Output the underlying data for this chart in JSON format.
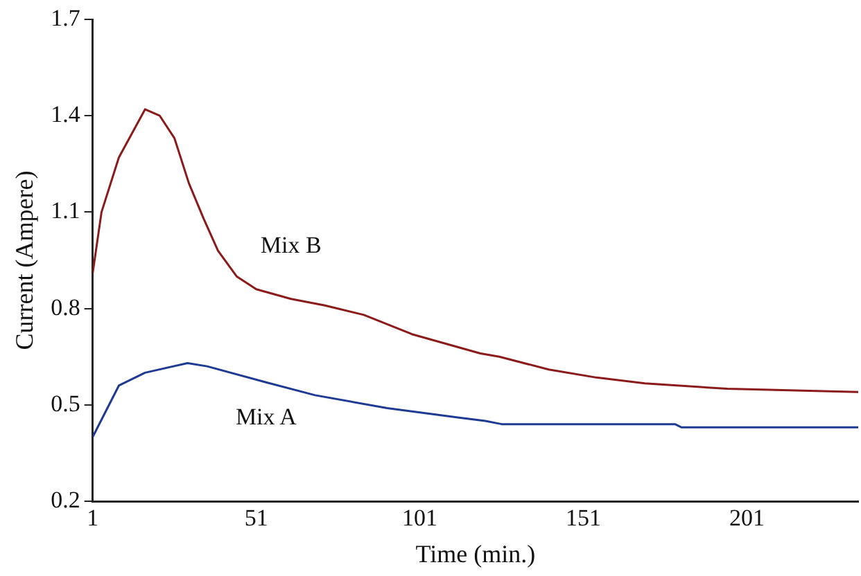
{
  "chart_data": {
    "type": "line",
    "xlabel": "Time (min.)",
    "ylabel": "Current (Ampere)",
    "xlim": [
      1,
      235
    ],
    "xticks": [
      1,
      51,
      101,
      151,
      201
    ],
    "ylim": [
      0.2,
      1.7
    ],
    "yticks": [
      0.2,
      0.5,
      0.8,
      1.1,
      1.4,
      1.7
    ],
    "grid": false,
    "legend": false,
    "marker": "none",
    "line_style": "solid",
    "series": [
      {
        "name": "Mix A",
        "color": "#1f3a93",
        "x": [
          1,
          9,
          17,
          30,
          36,
          54,
          69,
          91,
          113,
          121,
          126,
          179,
          181,
          235
        ],
        "values": [
          0.4,
          0.56,
          0.6,
          0.63,
          0.62,
          0.57,
          0.53,
          0.49,
          0.46,
          0.45,
          0.44,
          0.44,
          0.43,
          0.43
        ]
      },
      {
        "name": "Mix B",
        "color": "#8b1a1a",
        "x": [
          1,
          3.7,
          9,
          17,
          21.5,
          26,
          30.4,
          34.9,
          39.3,
          45,
          51,
          61.6,
          71.8,
          83.9,
          98.6,
          119.5,
          125.3,
          140.4,
          155,
          169.8,
          195,
          235
        ],
        "values": [
          0.91,
          1.1,
          1.27,
          1.42,
          1.4,
          1.33,
          1.19,
          1.08,
          0.98,
          0.9,
          0.86,
          0.83,
          0.81,
          0.78,
          0.72,
          0.66,
          0.65,
          0.61,
          0.585,
          0.567,
          0.55,
          0.54
        ]
      }
    ]
  }
}
